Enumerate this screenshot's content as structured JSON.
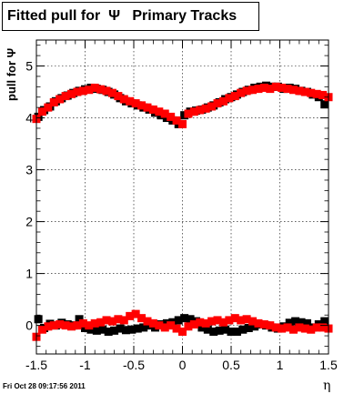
{
  "chart_data": {
    "type": "scatter",
    "title": "Fitted pull for  Ψ   Primary Tracks",
    "xlabel": "η",
    "ylabel": "pull for Ψ",
    "xlim": [
      -1.5,
      1.5
    ],
    "ylim": [
      -0.55,
      5.5
    ],
    "grid": true,
    "x_ticks": [
      -1.5,
      -1,
      -0.5,
      0,
      0.5,
      1,
      1.5
    ],
    "x_tick_labels": [
      "-1.5",
      "-1",
      "-0.5",
      "0",
      "0.5",
      "1",
      "1.5"
    ],
    "y_ticks": [
      0,
      1,
      2,
      3,
      4,
      5
    ],
    "y_tick_labels": [
      "0",
      "1",
      "2",
      "3",
      "4",
      "5"
    ],
    "series": [
      {
        "color": "#000000",
        "marker": "square",
        "x": [
          -1.48,
          -1.42,
          -1.36,
          -1.3,
          -1.24,
          -1.18,
          -1.12,
          -1.06,
          -1.0,
          -0.94,
          -0.88,
          -0.82,
          -0.76,
          -0.7,
          -0.64,
          -0.58,
          -0.52,
          -0.46,
          -0.4,
          -0.34,
          -0.28,
          -0.22,
          -0.16,
          -0.1,
          -0.04,
          0.02,
          0.08,
          0.14,
          0.2,
          0.26,
          0.32,
          0.38,
          0.44,
          0.5,
          0.56,
          0.62,
          0.68,
          0.74,
          0.8,
          0.86,
          0.92,
          0.98,
          1.04,
          1.1,
          1.16,
          1.22,
          1.28,
          1.34,
          1.4,
          1.46
        ],
        "y": [
          4.02,
          4.15,
          4.22,
          4.32,
          4.38,
          4.43,
          4.48,
          4.52,
          4.55,
          4.58,
          4.56,
          4.54,
          4.5,
          4.45,
          4.38,
          4.32,
          4.28,
          4.24,
          4.2,
          4.16,
          4.1,
          4.05,
          4.0,
          3.95,
          3.88,
          4.05,
          4.12,
          4.14,
          4.16,
          4.2,
          4.24,
          4.3,
          4.36,
          4.4,
          4.45,
          4.5,
          4.54,
          4.58,
          4.6,
          4.62,
          4.6,
          4.6,
          4.56,
          4.58,
          4.56,
          4.52,
          4.5,
          4.45,
          4.4,
          4.26
        ]
      },
      {
        "color": "#ff0000",
        "marker": "square",
        "x": [
          -1.5,
          -1.44,
          -1.38,
          -1.32,
          -1.26,
          -1.2,
          -1.14,
          -1.08,
          -1.02,
          -0.96,
          -0.9,
          -0.84,
          -0.78,
          -0.72,
          -0.66,
          -0.6,
          -0.54,
          -0.48,
          -0.42,
          -0.36,
          -0.3,
          -0.24,
          -0.18,
          -0.12,
          -0.06,
          0.0,
          0.06,
          0.12,
          0.18,
          0.24,
          0.3,
          0.36,
          0.42,
          0.48,
          0.54,
          0.6,
          0.66,
          0.72,
          0.78,
          0.84,
          0.9,
          0.96,
          1.02,
          1.08,
          1.14,
          1.2,
          1.26,
          1.32,
          1.38,
          1.44,
          1.5
        ],
        "y": [
          3.98,
          4.12,
          4.2,
          4.3,
          4.36,
          4.42,
          4.46,
          4.5,
          4.52,
          4.54,
          4.58,
          4.55,
          4.52,
          4.48,
          4.42,
          4.36,
          4.32,
          4.28,
          4.24,
          4.2,
          4.16,
          4.12,
          4.08,
          4.02,
          3.95,
          3.88,
          4.08,
          4.12,
          4.15,
          4.18,
          4.22,
          4.28,
          4.32,
          4.38,
          4.42,
          4.48,
          4.52,
          4.54,
          4.56,
          4.58,
          4.56,
          4.6,
          4.58,
          4.56,
          4.54,
          4.52,
          4.5,
          4.48,
          4.46,
          4.44,
          4.4
        ]
      },
      {
        "color": "#000000",
        "marker": "square",
        "x": [
          -1.48,
          -1.42,
          -1.36,
          -1.3,
          -1.24,
          -1.18,
          -1.12,
          -1.06,
          -1.0,
          -0.94,
          -0.88,
          -0.82,
          -0.76,
          -0.7,
          -0.64,
          -0.58,
          -0.52,
          -0.46,
          -0.4,
          -0.34,
          -0.28,
          -0.22,
          -0.16,
          -0.1,
          -0.04,
          0.02,
          0.08,
          0.14,
          0.2,
          0.26,
          0.32,
          0.38,
          0.44,
          0.5,
          0.56,
          0.62,
          0.68,
          0.74,
          0.8,
          0.86,
          0.92,
          0.98,
          1.04,
          1.1,
          1.16,
          1.22,
          1.28,
          1.34,
          1.4,
          1.46
        ],
        "y": [
          0.12,
          -0.05,
          0.03,
          0.0,
          0.05,
          0.02,
          0.0,
          0.12,
          -0.05,
          -0.08,
          -0.1,
          -0.08,
          -0.12,
          -0.1,
          -0.06,
          -0.09,
          -0.08,
          -0.06,
          -0.04,
          0.0,
          -0.04,
          0.02,
          0.04,
          0.06,
          0.1,
          0.14,
          0.12,
          0.08,
          -0.04,
          -0.08,
          -0.12,
          -0.1,
          -0.08,
          -0.12,
          -0.12,
          -0.08,
          -0.05,
          -0.02,
          0.02,
          0.0,
          -0.04,
          -0.06,
          -0.02,
          0.05,
          0.08,
          0.06,
          0.04,
          -0.04,
          0.02,
          0.08
        ]
      },
      {
        "color": "#ff0000",
        "marker": "square",
        "x": [
          -1.5,
          -1.44,
          -1.38,
          -1.32,
          -1.26,
          -1.2,
          -1.14,
          -1.08,
          -1.02,
          -0.96,
          -0.9,
          -0.84,
          -0.78,
          -0.72,
          -0.66,
          -0.6,
          -0.54,
          -0.48,
          -0.42,
          -0.36,
          -0.3,
          -0.24,
          -0.18,
          -0.12,
          -0.06,
          0.0,
          0.06,
          0.12,
          0.18,
          0.24,
          0.3,
          0.36,
          0.42,
          0.48,
          0.54,
          0.6,
          0.66,
          0.72,
          0.78,
          0.84,
          0.9,
          0.96,
          1.02,
          1.08,
          1.14,
          1.2,
          1.26,
          1.32,
          1.38,
          1.44,
          1.5
        ],
        "y": [
          -0.22,
          -0.08,
          -0.02,
          0.0,
          0.02,
          0.0,
          -0.02,
          0.0,
          0.04,
          0.0,
          0.04,
          0.06,
          0.1,
          0.08,
          0.12,
          0.1,
          0.18,
          0.22,
          0.14,
          0.08,
          0.04,
          0.0,
          -0.04,
          0.0,
          -0.06,
          -0.12,
          -0.02,
          0.02,
          0.06,
          0.04,
          0.08,
          0.1,
          0.06,
          0.1,
          0.14,
          0.1,
          0.12,
          0.08,
          0.04,
          0.02,
          0.0,
          -0.04,
          -0.06,
          -0.04,
          -0.08,
          -0.04,
          -0.06,
          -0.08,
          -0.04,
          -0.04,
          -0.06
        ]
      }
    ]
  },
  "footer": {
    "timestamp": "Fri Oct 28 09:17:56 2011"
  }
}
